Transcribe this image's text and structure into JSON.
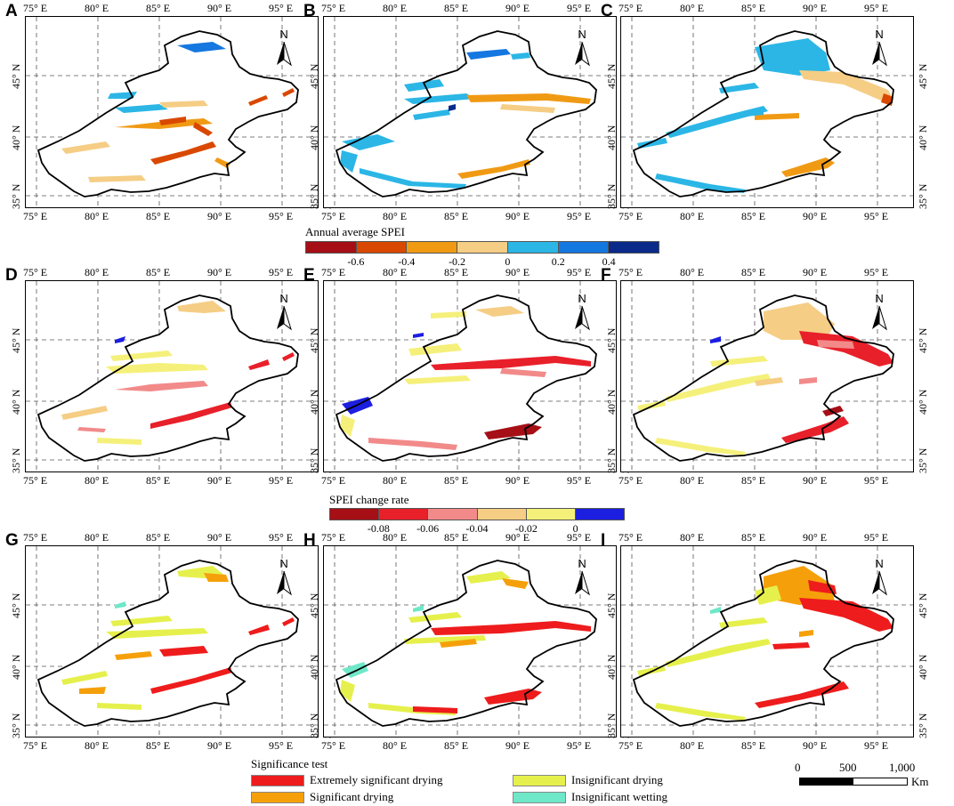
{
  "panels": [
    {
      "label": "A",
      "style": "spei"
    },
    {
      "label": "B",
      "style": "spei"
    },
    {
      "label": "C",
      "style": "spei"
    },
    {
      "label": "D",
      "style": "rate"
    },
    {
      "label": "E",
      "style": "rate"
    },
    {
      "label": "F",
      "style": "rate"
    },
    {
      "label": "G",
      "style": "sig"
    },
    {
      "label": "H",
      "style": "sig"
    },
    {
      "label": "I",
      "style": "sig"
    }
  ],
  "axes": {
    "lon_labels": [
      "75° E",
      "80° E",
      "85° E",
      "90° E",
      "95° E"
    ],
    "lat_labels": [
      "45° N",
      "40° N",
      "35° N"
    ],
    "north": "N"
  },
  "spei_legend": {
    "title": "Annual average SPEI",
    "colors": [
      "#a50f15",
      "#d94801",
      "#f09a14",
      "#f5cd84",
      "#2bb6e6",
      "#1577e0",
      "#0a2a8a"
    ],
    "ticks": [
      "-0.6",
      "-0.4",
      "-0.2",
      "0",
      "0.2",
      "0.4"
    ]
  },
  "rate_legend": {
    "title": "SPEI change rate",
    "colors": [
      "#a50f15",
      "#e8202a",
      "#f28a8a",
      "#f5cd84",
      "#f5f07a",
      "#1c1ee0"
    ],
    "ticks": [
      "-0.08",
      "-0.06",
      "-0.04",
      "-0.02",
      "0"
    ]
  },
  "significance_legend": {
    "title": "Significance test",
    "items": [
      {
        "label": "Extremely significant drying",
        "color": "#ee1c1c"
      },
      {
        "label": "Significant drying",
        "color": "#f5a00a"
      },
      {
        "label": "Insignificant drying",
        "color": "#e6f04c"
      },
      {
        "label": "Insignificant wetting",
        "color": "#6ee8c8"
      }
    ]
  },
  "scale_bar": {
    "labels": [
      "0",
      "500",
      "1,000"
    ],
    "unit": "Km"
  }
}
